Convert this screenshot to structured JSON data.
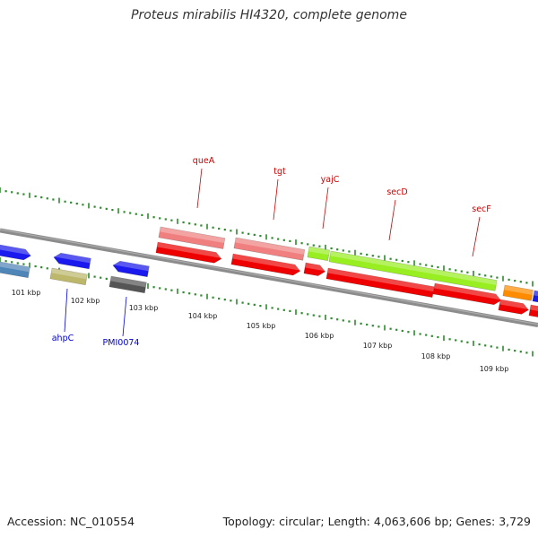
{
  "title": "Proteus mirabilis HI4320, complete genome",
  "footer": {
    "accession": "Accession: NC_010554",
    "summary": "Topology: circular; Length: 4,063,606 bp; Genes: 3,729"
  },
  "colors": {
    "backbone": "#8c8c8c",
    "tick": "#2e8b2e",
    "label_top": "#cc0000",
    "label_bottom": "#0000cc",
    "scale_text": "#222222"
  },
  "scale_labels": [
    "101 kbp",
    "102 kbp",
    "103 kbp",
    "104 kbp",
    "105 kbp",
    "106 kbp",
    "107 kbp",
    "108 kbp",
    "109 kbp"
  ],
  "gene_labels_top": [
    "queA",
    "tgt",
    "yajC",
    "secD",
    "secF"
  ],
  "gene_labels_bottom": [
    "ahpC",
    "PMI0074"
  ],
  "features": [
    {
      "name": "feature-blue-1",
      "color": "#1a1aee"
    },
    {
      "name": "feature-steelblue-1",
      "color": "#4f86b8"
    },
    {
      "name": "feature-ahpC",
      "color": "#1a1aee"
    },
    {
      "name": "feature-olive-1",
      "color": "#bdb76b"
    },
    {
      "name": "feature-PMI0074",
      "color": "#1a1aee"
    },
    {
      "name": "feature-gray-1",
      "color": "#555555"
    },
    {
      "name": "feature-queA-cds",
      "color": "#f08080"
    },
    {
      "name": "feature-queA-gene",
      "color": "#ee0000"
    },
    {
      "name": "feature-tgt-cds",
      "color": "#f08080"
    },
    {
      "name": "feature-tgt-gene",
      "color": "#ee0000"
    },
    {
      "name": "feature-yajC-cds",
      "color": "#99ee22"
    },
    {
      "name": "feature-yajC-gene",
      "color": "#ee0000"
    },
    {
      "name": "feature-secD-cds",
      "color": "#99ee22"
    },
    {
      "name": "feature-secD-gene",
      "color": "#ee0000"
    },
    {
      "name": "feature-secF-gene",
      "color": "#ee0000"
    },
    {
      "name": "feature-orange-1",
      "color": "#ff8c00"
    },
    {
      "name": "feature-red-1",
      "color": "#ee0000"
    },
    {
      "name": "feature-blue-2",
      "color": "#1a1aee"
    },
    {
      "name": "feature-red-2",
      "color": "#ee0000"
    }
  ]
}
